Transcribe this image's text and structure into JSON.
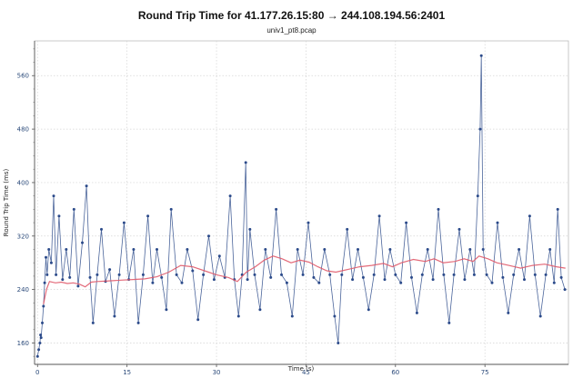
{
  "chart_data": {
    "type": "scatter",
    "title": "Round Trip Time for 41.177.26.15:80 → 244.108.194.56:2401",
    "subtitle": "univ1_pt8.pcap",
    "xlabel": "Time (s)",
    "ylabel": "Round Trip Time (ms)",
    "xlim": [
      -0.5,
      89
    ],
    "ylim": [
      128,
      612
    ],
    "x_ticks": [
      0,
      15,
      30,
      45,
      60,
      75
    ],
    "y_ticks": [
      160,
      240,
      320,
      400,
      480,
      560
    ],
    "grid": true,
    "series": [
      {
        "color": "#2b4a8a",
        "style": "line+markers",
        "points": [
          [
            0.0,
            140
          ],
          [
            0.2,
            150
          ],
          [
            0.4,
            160
          ],
          [
            0.5,
            172
          ],
          [
            0.6,
            168
          ],
          [
            0.8,
            190
          ],
          [
            1.0,
            215
          ],
          [
            1.2,
            250
          ],
          [
            1.4,
            288
          ],
          [
            1.6,
            262
          ],
          [
            1.9,
            300
          ],
          [
            2.3,
            280
          ],
          [
            2.7,
            380
          ],
          [
            3.1,
            262
          ],
          [
            3.6,
            350
          ],
          [
            4.2,
            255
          ],
          [
            4.8,
            300
          ],
          [
            5.4,
            258
          ],
          [
            6.1,
            360
          ],
          [
            6.8,
            245
          ],
          [
            7.5,
            310
          ],
          [
            8.2,
            395
          ],
          [
            8.8,
            258
          ],
          [
            9.3,
            190
          ],
          [
            10.0,
            262
          ],
          [
            10.7,
            330
          ],
          [
            11.4,
            252
          ],
          [
            12.1,
            270
          ],
          [
            12.9,
            200
          ],
          [
            13.7,
            262
          ],
          [
            14.5,
            340
          ],
          [
            15.3,
            255
          ],
          [
            16.1,
            300
          ],
          [
            16.9,
            190
          ],
          [
            17.7,
            262
          ],
          [
            18.5,
            350
          ],
          [
            19.3,
            250
          ],
          [
            20.0,
            300
          ],
          [
            20.8,
            258
          ],
          [
            21.6,
            210
          ],
          [
            22.4,
            360
          ],
          [
            23.3,
            262
          ],
          [
            24.2,
            250
          ],
          [
            25.1,
            300
          ],
          [
            26.0,
            268
          ],
          [
            26.9,
            195
          ],
          [
            27.8,
            262
          ],
          [
            28.7,
            320
          ],
          [
            29.6,
            255
          ],
          [
            30.5,
            290
          ],
          [
            31.4,
            258
          ],
          [
            32.3,
            380
          ],
          [
            33.0,
            255
          ],
          [
            33.7,
            200
          ],
          [
            34.3,
            262
          ],
          [
            34.9,
            430
          ],
          [
            35.2,
            255
          ],
          [
            35.6,
            330
          ],
          [
            36.4,
            262
          ],
          [
            37.3,
            210
          ],
          [
            38.2,
            300
          ],
          [
            39.1,
            258
          ],
          [
            40.0,
            360
          ],
          [
            40.9,
            262
          ],
          [
            41.8,
            250
          ],
          [
            42.7,
            200
          ],
          [
            43.6,
            300
          ],
          [
            44.5,
            262
          ],
          [
            45.4,
            340
          ],
          [
            46.3,
            258
          ],
          [
            47.2,
            250
          ],
          [
            48.1,
            300
          ],
          [
            49.0,
            262
          ],
          [
            49.8,
            200
          ],
          [
            50.4,
            160
          ],
          [
            51.0,
            262
          ],
          [
            51.9,
            330
          ],
          [
            52.8,
            255
          ],
          [
            53.7,
            300
          ],
          [
            54.6,
            258
          ],
          [
            55.5,
            210
          ],
          [
            56.4,
            262
          ],
          [
            57.3,
            350
          ],
          [
            58.2,
            255
          ],
          [
            59.1,
            300
          ],
          [
            60.0,
            262
          ],
          [
            60.9,
            250
          ],
          [
            61.8,
            340
          ],
          [
            62.7,
            258
          ],
          [
            63.6,
            205
          ],
          [
            64.5,
            262
          ],
          [
            65.4,
            300
          ],
          [
            66.3,
            255
          ],
          [
            67.2,
            360
          ],
          [
            68.1,
            262
          ],
          [
            69.0,
            190
          ],
          [
            69.8,
            262
          ],
          [
            70.7,
            330
          ],
          [
            71.6,
            255
          ],
          [
            72.5,
            300
          ],
          [
            73.2,
            262
          ],
          [
            73.8,
            380
          ],
          [
            74.2,
            480
          ],
          [
            74.4,
            590
          ],
          [
            74.7,
            300
          ],
          [
            75.3,
            262
          ],
          [
            76.2,
            250
          ],
          [
            77.1,
            340
          ],
          [
            78.0,
            258
          ],
          [
            78.9,
            205
          ],
          [
            79.8,
            262
          ],
          [
            80.7,
            300
          ],
          [
            81.6,
            255
          ],
          [
            82.5,
            350
          ],
          [
            83.4,
            262
          ],
          [
            84.3,
            200
          ],
          [
            85.2,
            262
          ],
          [
            85.9,
            300
          ],
          [
            86.6,
            250
          ],
          [
            87.2,
            360
          ],
          [
            87.8,
            258
          ],
          [
            88.4,
            240
          ]
        ]
      },
      {
        "color": "#e05a6a",
        "style": "line",
        "points": [
          [
            1.0,
            218
          ],
          [
            1.5,
            240
          ],
          [
            2.0,
            252
          ],
          [
            3.0,
            250
          ],
          [
            4.0,
            251
          ],
          [
            5.0,
            249
          ],
          [
            6.0,
            250
          ],
          [
            7.0,
            248
          ],
          [
            8.0,
            244
          ],
          [
            9.0,
            251
          ],
          [
            10.0,
            252
          ],
          [
            12.0,
            253
          ],
          [
            14.0,
            254
          ],
          [
            16.0,
            255
          ],
          [
            18.0,
            256
          ],
          [
            20.0,
            259
          ],
          [
            22.0,
            266
          ],
          [
            24.0,
            276
          ],
          [
            26.0,
            274
          ],
          [
            28.0,
            268
          ],
          [
            30.0,
            262
          ],
          [
            32.0,
            258
          ],
          [
            33.5,
            252
          ],
          [
            35.0,
            266
          ],
          [
            36.5,
            274
          ],
          [
            38.0,
            284
          ],
          [
            39.5,
            290
          ],
          [
            41.0,
            286
          ],
          [
            42.5,
            280
          ],
          [
            44.0,
            284
          ],
          [
            45.5,
            281
          ],
          [
            47.0,
            274
          ],
          [
            48.5,
            268
          ],
          [
            50.0,
            266
          ],
          [
            52.0,
            270
          ],
          [
            54.0,
            274
          ],
          [
            56.0,
            276
          ],
          [
            58.0,
            279
          ],
          [
            59.5,
            274
          ],
          [
            61.0,
            280
          ],
          [
            63.0,
            285
          ],
          [
            65.0,
            282
          ],
          [
            66.5,
            286
          ],
          [
            68.0,
            280
          ],
          [
            70.0,
            282
          ],
          [
            71.5,
            286
          ],
          [
            73.0,
            282
          ],
          [
            74.0,
            290
          ],
          [
            75.5,
            286
          ],
          [
            77.0,
            280
          ],
          [
            79.0,
            276
          ],
          [
            81.0,
            272
          ],
          [
            83.0,
            276
          ],
          [
            85.0,
            278
          ],
          [
            87.0,
            274
          ],
          [
            88.5,
            272
          ]
        ]
      }
    ]
  }
}
